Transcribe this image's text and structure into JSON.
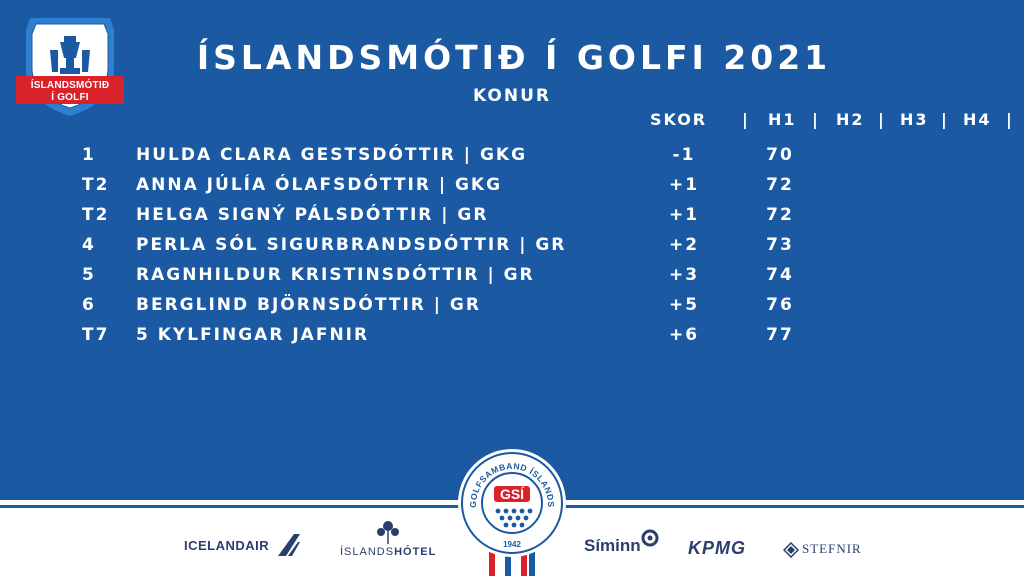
{
  "logo": {
    "line1": "ÍSLANDSMÓTIÐ",
    "line2": "Í GOLFI"
  },
  "title": "ÍSLANDSMÓTIÐ Í GOLFI 2021",
  "subtitle": "KONUR",
  "columns": {
    "skor": "SKOR",
    "sep1": "|",
    "h1": "H1",
    "sep2": "|",
    "h2": "H2",
    "sep3": "|",
    "h3": "H3",
    "sep4": "|",
    "h4": "H4",
    "sep5": "|"
  },
  "rows": [
    {
      "pos": "1",
      "name": "HULDA CLARA GESTSDÓTTIR | GKG",
      "score": "-1",
      "h1": "70"
    },
    {
      "pos": "T2",
      "name": "ANNA JÚLÍA ÓLAFSDÓTTIR | GKG",
      "score": "+1",
      "h1": "72"
    },
    {
      "pos": "T2",
      "name": "HELGA SIGNÝ PÁLSDÓTTIR | GR",
      "score": "+1",
      "h1": "72"
    },
    {
      "pos": "4",
      "name": "PERLA SÓL SIGURBRANDSDÓTTIR | GR",
      "score": "+2",
      "h1": "73"
    },
    {
      "pos": "5",
      "name": "RAGNHILDUR KRISTINSDÓTTIR | GR",
      "score": "+3",
      "h1": "74"
    },
    {
      "pos": "6",
      "name": "BERGLIND BJÖRNSDÓTTIR | GR",
      "score": "+5",
      "h1": "76"
    },
    {
      "pos": "T7",
      "name": "5 KYLFINGAR JAFNIR",
      "score": "+6",
      "h1": "77"
    }
  ],
  "badge": {
    "ring_text": "GOLFSAMBAND ÍSLANDS",
    "center": "GSÍ",
    "year": "1942"
  },
  "sponsors": {
    "icelandair": "ICELANDAIR",
    "hotel_a": "ÍSLANDS",
    "hotel_b": "HÓTEL",
    "siminn": "Síminn",
    "kpmg": "KPMG",
    "stefnir": "STEFNIR"
  },
  "colors": {
    "background": "#1b5aa3",
    "text": "#ffffff",
    "red": "#d8232a",
    "navy": "#2b3f6e"
  }
}
